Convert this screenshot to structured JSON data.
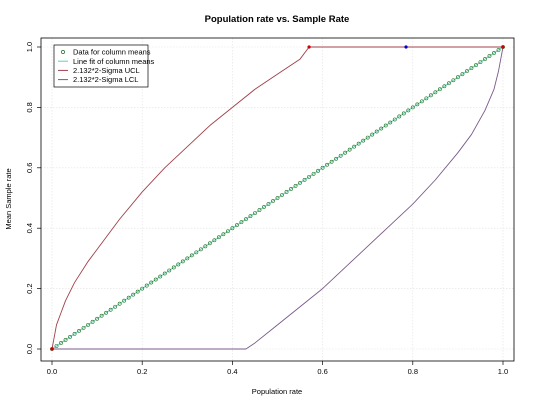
{
  "chart_data": {
    "type": "line",
    "title": "Population rate vs. Sample Rate",
    "xlabel": "Population rate",
    "ylabel": "Mean Sample rate",
    "xlim": [
      0,
      1
    ],
    "ylim": [
      0,
      1
    ],
    "x_ticks": [
      "0.0",
      "0.2",
      "0.4",
      "0.6",
      "0.8",
      "1.0"
    ],
    "y_ticks": [
      "0.0",
      "0.2",
      "0.4",
      "0.6",
      "0.8",
      "1.0"
    ],
    "grid": true,
    "legend_position": "top-left",
    "legend": [
      {
        "label": "Data for column means",
        "style": "circle",
        "color": "#1a6b1a"
      },
      {
        "label": "Line fit of column means",
        "style": "line",
        "color": "#5fd3b3"
      },
      {
        "label": "2.132*2-Sigma UCL",
        "style": "line",
        "color": "#a0404a"
      },
      {
        "label": "2.132*2-Sigma LCL",
        "style": "line",
        "color": "#7a5a8a"
      }
    ],
    "series": [
      {
        "name": "Data for column means",
        "style": "points",
        "color": "#1a6b1a",
        "x_start": 0.0,
        "x_end": 1.0,
        "count": 101,
        "slope": 1.0,
        "intercept": 0.0
      },
      {
        "name": "Line fit of column means",
        "style": "line",
        "color": "#5fd3b3",
        "x": [
          0.0,
          1.0
        ],
        "y": [
          0.0,
          1.0
        ]
      },
      {
        "name": "2.132*2-Sigma UCL",
        "style": "line",
        "color": "#a0404a",
        "x": [
          0.0,
          0.005,
          0.01,
          0.02,
          0.03,
          0.05,
          0.08,
          0.1,
          0.15,
          0.2,
          0.25,
          0.3,
          0.35,
          0.4,
          0.45,
          0.5,
          0.55,
          0.57,
          0.6,
          0.7,
          0.8,
          0.9,
          1.0
        ],
        "y": [
          0.0,
          0.04,
          0.08,
          0.12,
          0.16,
          0.22,
          0.29,
          0.33,
          0.43,
          0.52,
          0.6,
          0.67,
          0.74,
          0.8,
          0.86,
          0.91,
          0.96,
          1.0,
          1.0,
          1.0,
          1.0,
          1.0,
          1.0
        ]
      },
      {
        "name": "2.132*2-Sigma LCL",
        "style": "line",
        "color": "#7a5a8a",
        "x": [
          0.0,
          0.1,
          0.2,
          0.3,
          0.4,
          0.43,
          0.45,
          0.5,
          0.55,
          0.6,
          0.65,
          0.7,
          0.75,
          0.8,
          0.85,
          0.9,
          0.93,
          0.96,
          0.98,
          0.99,
          1.0
        ],
        "y": [
          0.0,
          0.0,
          0.0,
          0.0,
          0.0,
          0.0,
          0.02,
          0.08,
          0.14,
          0.2,
          0.27,
          0.34,
          0.41,
          0.48,
          0.56,
          0.65,
          0.71,
          0.79,
          0.86,
          0.92,
          1.0
        ]
      }
    ],
    "markers": [
      {
        "x": 0.0,
        "y": 0.0,
        "color": "#cc0000"
      },
      {
        "x": 0.57,
        "y": 1.0,
        "color": "#cc0000"
      },
      {
        "x": 0.785,
        "y": 1.0,
        "color": "#0000cc"
      },
      {
        "x": 1.0,
        "y": 1.0,
        "color": "#cc0000"
      }
    ]
  }
}
